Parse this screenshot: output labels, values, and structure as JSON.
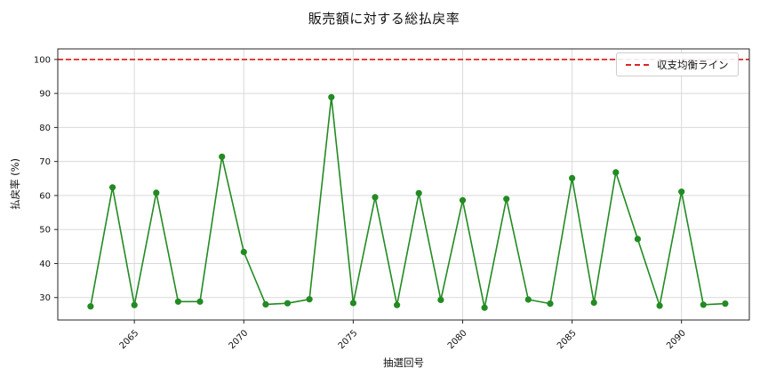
{
  "chart_data": {
    "type": "line",
    "title": "販売額に対する総払戻率",
    "xlabel": "抽選回号",
    "ylabel": "払戻率 (%)",
    "legend_label": "収支均衡ライン",
    "legend_position": "upper right",
    "grid": true,
    "x": [
      2063,
      2064,
      2065,
      2066,
      2067,
      2068,
      2069,
      2070,
      2071,
      2072,
      2073,
      2074,
      2075,
      2076,
      2077,
      2078,
      2079,
      2080,
      2081,
      2082,
      2083,
      2084,
      2085,
      2086,
      2087,
      2088,
      2089,
      2090,
      2091,
      2092
    ],
    "values": [
      27.4,
      62.4,
      27.8,
      60.8,
      28.8,
      28.8,
      71.4,
      43.4,
      28.0,
      28.3,
      29.5,
      88.9,
      28.4,
      59.5,
      27.8,
      60.7,
      29.3,
      58.6,
      27.0,
      59.0,
      29.4,
      28.2,
      65.1,
      28.5,
      66.8,
      47.2,
      27.6,
      61.1,
      27.9,
      28.2
    ],
    "breakeven_y": 100,
    "x_ticks": [
      2065,
      2070,
      2075,
      2080,
      2085,
      2090
    ],
    "y_ticks": [
      30,
      40,
      50,
      60,
      70,
      80,
      90,
      100
    ],
    "xlim": [
      2061.5,
      2093.1
    ],
    "ylim": [
      23.4,
      103.1
    ],
    "series_color": "#228b22",
    "breakeven_color": "#d62728",
    "grid_color": "#d9d9d9",
    "spine_color": "#262626",
    "text_color": "#111111"
  }
}
